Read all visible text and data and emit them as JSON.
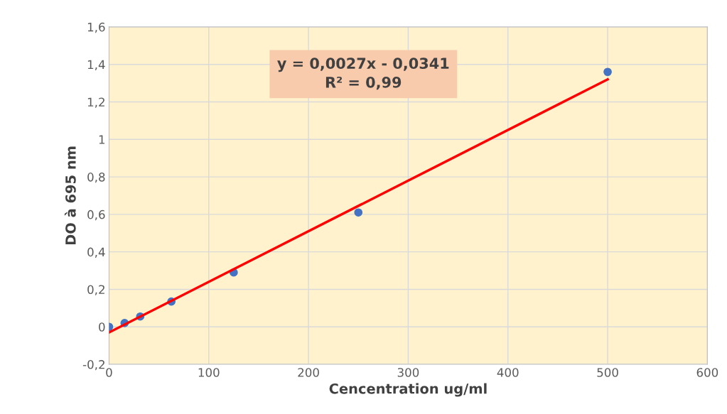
{
  "chart_data": {
    "type": "scatter",
    "xlabel": "Cencentration ug/ml",
    "ylabel": "DO à 695 nm",
    "x": [
      0,
      15.6,
      31.25,
      62.5,
      125,
      250,
      500
    ],
    "series": [
      {
        "color": "#4472c4",
        "marker": "circle",
        "values": [
          0,
          0.02,
          0.055,
          0.135,
          0.29,
          0.61,
          1.36
        ]
      },
      {
        "type": "line",
        "color": "#ff0000",
        "marker": "none",
        "x": [
          0,
          500
        ],
        "values": [
          -0.03,
          1.32
        ]
      }
    ],
    "annotations": [
      "y = 0,0027x - 0,0341\nR² = 0,99"
    ],
    "xlim": [
      0,
      600
    ],
    "xticks": [
      0,
      100,
      200,
      300,
      400,
      500,
      600
    ],
    "ylim": [
      -0.2,
      1.6
    ],
    "yticks": [
      {
        "value": -0.2,
        "label": "-0,2"
      },
      0,
      {
        "value": 0.2,
        "label": "0,2"
      },
      {
        "value": 0.4,
        "label": "0,4"
      },
      {
        "value": 0.6,
        "label": "0,6"
      },
      {
        "value": 0.8,
        "label": "0,8"
      },
      1,
      {
        "value": 1.2,
        "label": "1,2"
      },
      {
        "value": 1.4,
        "label": "1,4"
      },
      {
        "value": 1.6,
        "label": "1,6"
      }
    ],
    "grid": true
  }
}
